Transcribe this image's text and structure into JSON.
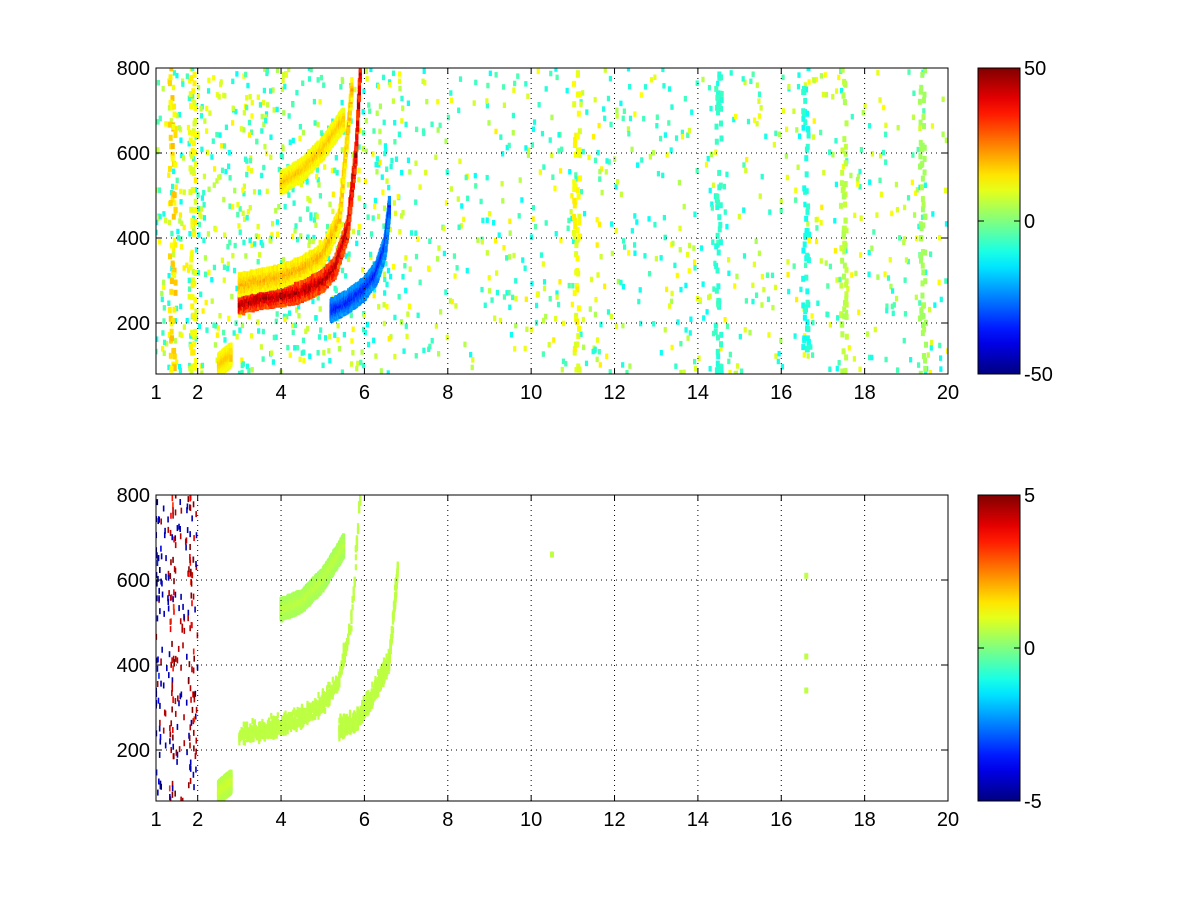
{
  "chart_data": [
    {
      "type": "heatmap",
      "title": "",
      "xlabel": "",
      "ylabel": "",
      "xlim": [
        1,
        20
      ],
      "ylim": [
        80,
        800
      ],
      "grid": true,
      "xticks": [
        1,
        2,
        4,
        6,
        8,
        10,
        12,
        14,
        16,
        18,
        20
      ],
      "xtick_labels": [
        "1",
        "2",
        "4",
        "6",
        "8",
        "10",
        "12",
        "14",
        "16",
        "18",
        "20"
      ],
      "yticks": [
        200,
        400,
        600,
        800
      ],
      "ytick_labels": [
        "200",
        "400",
        "600",
        "800"
      ],
      "colorbar": {
        "colormap": "jet",
        "min": -50,
        "max": 50,
        "ticks": [
          -50,
          0,
          50
        ],
        "tick_labels": [
          "-50",
          "0",
          "50"
        ]
      },
      "features": [
        {
          "kind": "curve",
          "x": [
            3.0,
            3.5,
            4.0,
            4.5,
            5.0,
            5.3,
            5.6,
            5.8,
            5.9
          ],
          "y": [
            245,
            260,
            265,
            275,
            300,
            330,
            420,
            600,
            790
          ],
          "value": 45
        },
        {
          "kind": "curve",
          "x": [
            3.0,
            3.5,
            4.0,
            4.5,
            5.0,
            5.4,
            5.7
          ],
          "y": [
            290,
            300,
            310,
            330,
            360,
            440,
            750
          ],
          "value": 20
        },
        {
          "kind": "curve",
          "x": [
            5.2,
            5.6,
            6.0,
            6.3,
            6.5,
            6.6
          ],
          "y": [
            230,
            250,
            280,
            320,
            380,
            470
          ],
          "value": -35
        },
        {
          "kind": "curve",
          "x": [
            4.0,
            4.5,
            5.0,
            5.5
          ],
          "y": [
            530,
            560,
            610,
            680
          ],
          "value": 18
        },
        {
          "kind": "curve",
          "x": [
            2.5,
            2.8
          ],
          "y": [
            100,
            125
          ],
          "value": 18
        },
        {
          "kind": "stripe",
          "x": 1.4,
          "value": 16
        },
        {
          "kind": "stripe",
          "x": 1.9,
          "value": 12
        },
        {
          "kind": "stripe",
          "x": 11.1,
          "value": 12
        },
        {
          "kind": "stripe",
          "x": 14.5,
          "value": -8
        },
        {
          "kind": "stripe",
          "x": 16.6,
          "value": -10
        },
        {
          "kind": "stripe",
          "x": 17.5,
          "value": 6
        },
        {
          "kind": "stripe",
          "x": 19.4,
          "value": 4
        }
      ],
      "noise_range": [
        1,
        20
      ]
    },
    {
      "type": "heatmap",
      "title": "",
      "xlabel": "",
      "ylabel": "",
      "xlim": [
        1,
        20
      ],
      "ylim": [
        80,
        800
      ],
      "grid": true,
      "xticks": [
        1,
        2,
        4,
        6,
        8,
        10,
        12,
        14,
        16,
        18,
        20
      ],
      "xtick_labels": [
        "1",
        "2",
        "4",
        "6",
        "8",
        "10",
        "12",
        "14",
        "16",
        "18",
        "20"
      ],
      "yticks": [
        200,
        400,
        600,
        800
      ],
      "ytick_labels": [
        "200",
        "400",
        "600",
        "800"
      ],
      "colorbar": {
        "colormap": "jet",
        "min": -5,
        "max": 5,
        "ticks": [
          -5,
          0,
          5
        ],
        "tick_labels": [
          "-5",
          "0",
          "5"
        ]
      },
      "features": [
        {
          "kind": "band",
          "x": [
            3.0,
            3.5,
            4.0,
            4.5,
            5.0,
            5.4,
            5.7,
            5.9
          ],
          "y": [
            230,
            235,
            250,
            270,
            300,
            360,
            500,
            790
          ],
          "value": 0.6
        },
        {
          "kind": "band",
          "x": [
            5.4,
            5.8,
            6.2,
            6.6,
            6.8
          ],
          "y": [
            240,
            260,
            320,
            400,
            620
          ],
          "value": 0.6
        },
        {
          "kind": "curve",
          "x": [
            4.0,
            4.5,
            5.0,
            5.5
          ],
          "y": [
            530,
            550,
            600,
            680
          ],
          "value": 0.6
        },
        {
          "kind": "curve",
          "x": [
            2.5,
            2.8
          ],
          "y": [
            100,
            125
          ],
          "value": 0.8
        },
        {
          "kind": "stripe",
          "x": 1.4,
          "value": 4.5
        },
        {
          "kind": "stripe",
          "x": 1.85,
          "value": 4.8
        },
        {
          "kind": "stripe",
          "x": 1.05,
          "value": -4.8
        },
        {
          "kind": "spot",
          "x": 10.5,
          "y": 660,
          "value": 0.6
        },
        {
          "kind": "spot",
          "x": 16.6,
          "y": 610,
          "value": 0.6
        },
        {
          "kind": "spot",
          "x": 16.6,
          "y": 420,
          "value": 0.6
        },
        {
          "kind": "spot",
          "x": 16.6,
          "y": 340,
          "value": 0.6
        }
      ],
      "noise_range": [
        1,
        2
      ]
    }
  ]
}
